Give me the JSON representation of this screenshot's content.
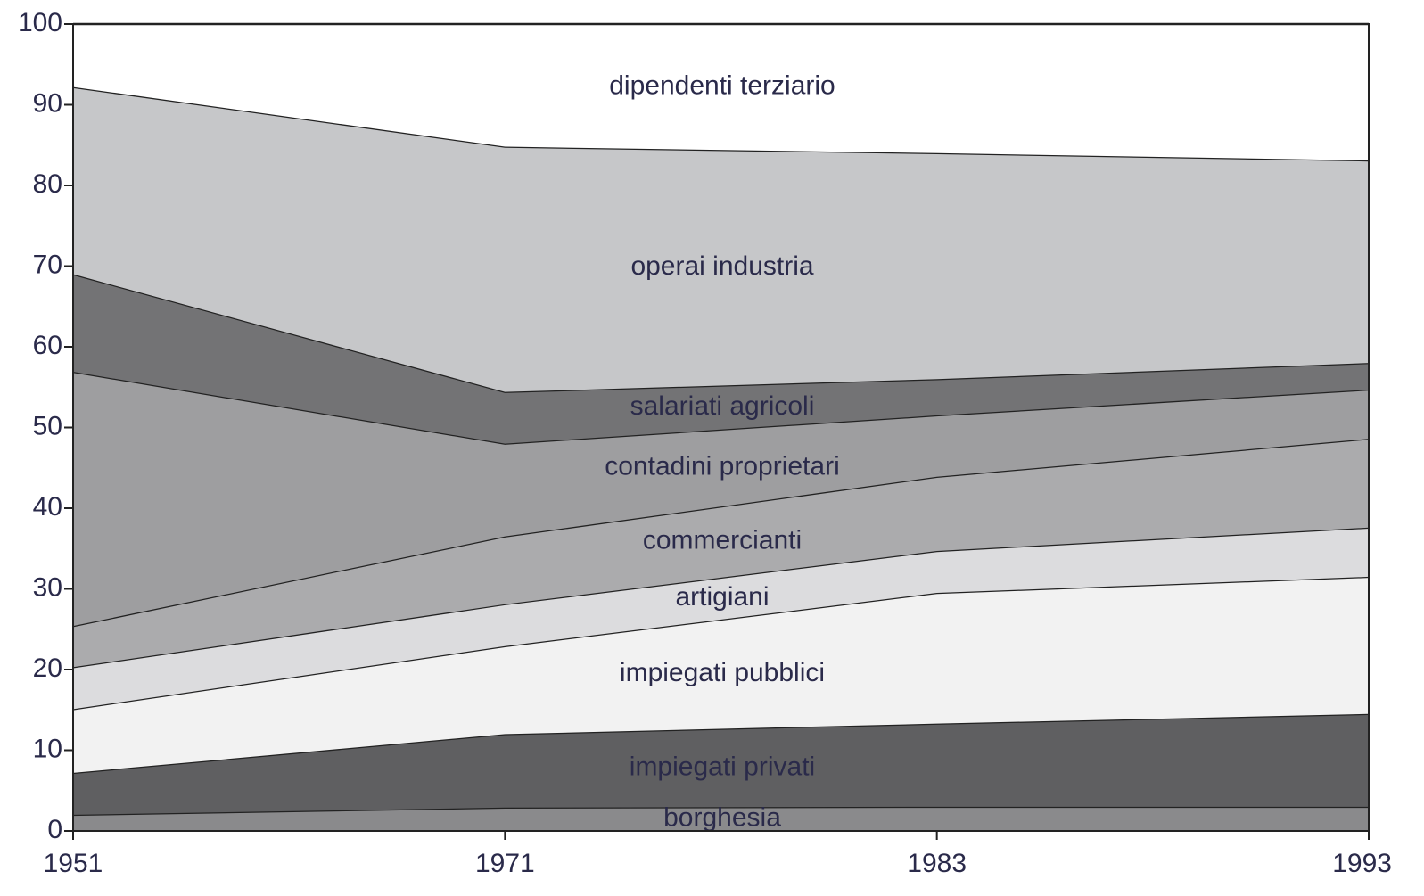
{
  "chart_data": {
    "type": "stacked_area",
    "categories": [
      "1951",
      "1971",
      "1983",
      "1993"
    ],
    "series": [
      {
        "name": "borghesia",
        "color": "#8a8a8c",
        "values": [
          2.0,
          2.9,
          3.0,
          3.0
        ]
      },
      {
        "name": "impiegati privati",
        "color": "#5f5f61",
        "values": [
          5.2,
          9.1,
          10.3,
          11.5
        ]
      },
      {
        "name": "impiegati pubblici",
        "color": "#f2f2f2",
        "values": [
          7.9,
          10.9,
          16.2,
          17.0
        ]
      },
      {
        "name": "artigiani",
        "color": "#dcdcde",
        "values": [
          5.2,
          5.2,
          5.2,
          6.1
        ]
      },
      {
        "name": "commercianti",
        "color": "#ababad",
        "values": [
          5.1,
          8.4,
          9.2,
          11.0
        ]
      },
      {
        "name": "contadini proprietari",
        "color": "#9e9ea0",
        "values": [
          31.5,
          11.5,
          7.6,
          6.1
        ]
      },
      {
        "name": "salariati agricoli",
        "color": "#737375",
        "values": [
          12.1,
          6.4,
          4.5,
          3.3
        ]
      },
      {
        "name": "operai industria",
        "color": "#c6c7c9",
        "values": [
          23.2,
          30.4,
          28.0,
          25.1
        ]
      },
      {
        "name": "dipendenti terziario",
        "color": "#ffffff",
        "values": [
          7.8,
          15.2,
          16.0,
          16.9
        ]
      }
    ],
    "ylim": [
      0,
      100
    ],
    "yticks": [
      0,
      10,
      20,
      30,
      40,
      50,
      60,
      70,
      80,
      90,
      100
    ]
  }
}
